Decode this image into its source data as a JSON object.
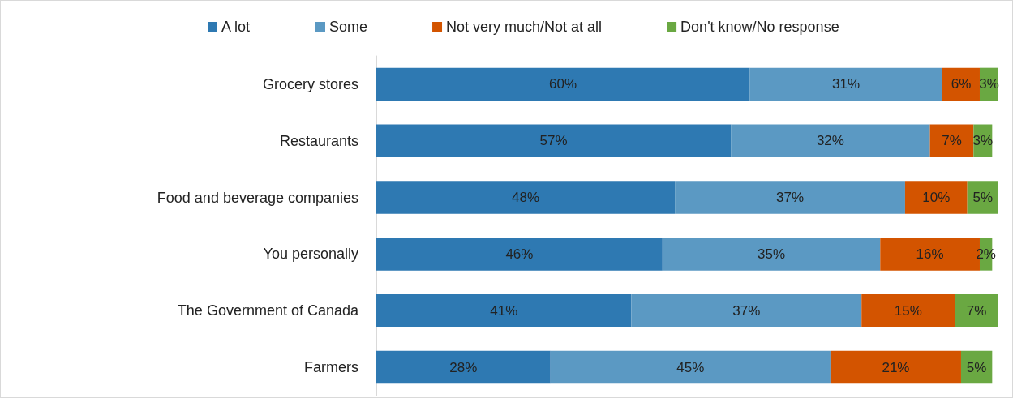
{
  "chart_data": {
    "type": "bar",
    "orientation": "horizontal",
    "stacked": true,
    "legend": "top",
    "categories": [
      "Grocery stores",
      "Restaurants",
      "Food and beverage companies",
      "You personally",
      "The Government of Canada",
      "Farmers"
    ],
    "series": [
      {
        "name": "A lot",
        "color": "#2e79b2",
        "values": [
          60,
          57,
          48,
          46,
          41,
          28
        ],
        "value_labels": [
          "60%",
          "57%",
          "48%",
          "46%",
          "41%",
          "28%"
        ]
      },
      {
        "name": "Some",
        "color": "#5b99c3",
        "values": [
          31,
          32,
          37,
          35,
          37,
          45
        ],
        "value_labels": [
          "31%",
          "32%",
          "37%",
          "35%",
          "37%",
          "45%"
        ]
      },
      {
        "name": "Not very much/Not at all",
        "color": "#d35400",
        "values": [
          6,
          7,
          10,
          16,
          15,
          21
        ],
        "value_labels": [
          "6%",
          "7%",
          "10%",
          "16%",
          "15%",
          "21%"
        ]
      },
      {
        "name": "Don't know/No response",
        "color": "#6aa842",
        "values": [
          3,
          3,
          5,
          2,
          7,
          5
        ],
        "value_labels": [
          "3%",
          "3%",
          "5%",
          "2%",
          "7%",
          "5%"
        ]
      }
    ]
  }
}
